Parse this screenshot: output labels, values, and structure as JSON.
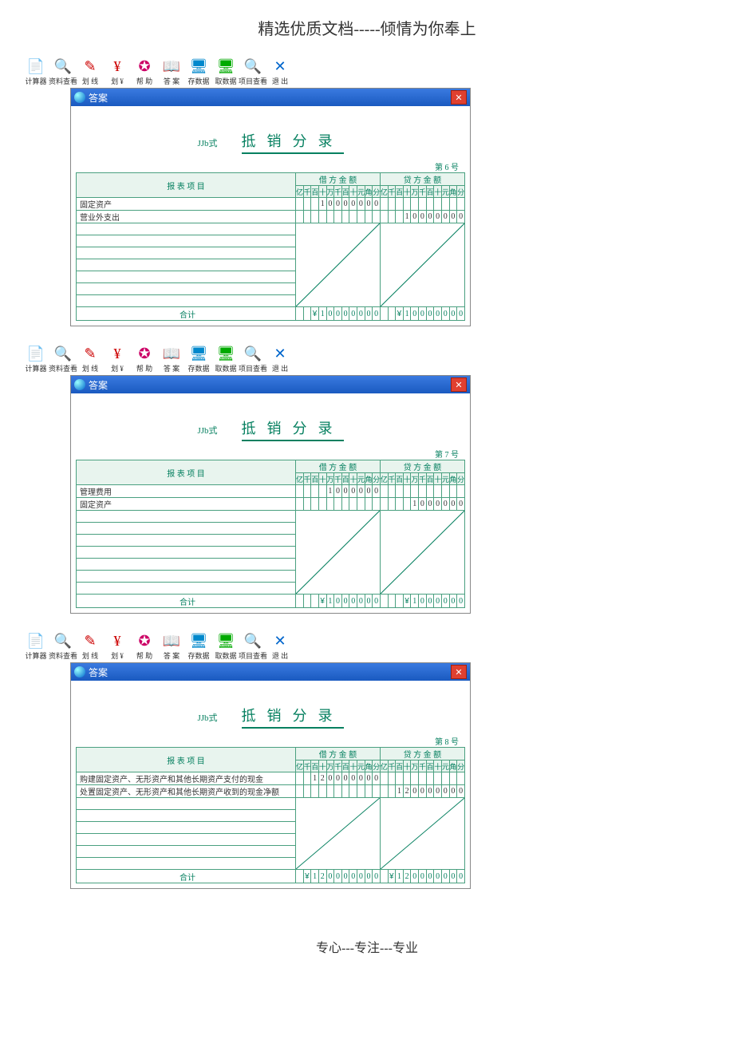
{
  "header": "精选优质文档-----倾情为你奉上",
  "footer": "专心---专注---专业",
  "toolbar": [
    {
      "name": "calc",
      "label": "计算器",
      "icon": "📄",
      "color": "#888"
    },
    {
      "name": "data-view",
      "label": "资料查看",
      "icon": "🔍",
      "color": "#06c"
    },
    {
      "name": "line1",
      "label": "划 线",
      "icon": "✎",
      "color": "#c00"
    },
    {
      "name": "line-y",
      "label": "划 ¥",
      "icon": "¥",
      "color": "#c00"
    },
    {
      "name": "help",
      "label": "帮 助",
      "icon": "✪",
      "color": "#c06"
    },
    {
      "name": "answer",
      "label": "答 案",
      "icon": "📖",
      "color": "#c80"
    },
    {
      "name": "save",
      "label": "存数据",
      "icon": "🖥",
      "color": "#08c"
    },
    {
      "name": "load",
      "label": "取数据",
      "icon": "🖥",
      "color": "#0a0"
    },
    {
      "name": "proj-view",
      "label": "项目查看",
      "icon": "🔍",
      "color": "#c80"
    },
    {
      "name": "exit",
      "label": "退 出",
      "icon": "✕",
      "color": "#06c"
    }
  ],
  "window_title": "答案",
  "form_code": "JJb式",
  "form_title": "抵销分录",
  "digit_headers": [
    "亿",
    "千",
    "百",
    "十",
    "万",
    "千",
    "百",
    "十",
    "元",
    "角",
    "分"
  ],
  "debit_header": "借 方 金 额",
  "credit_header": "贷 方 金 额",
  "item_header": "报 表 项 目",
  "total_label": "合计",
  "currency": "¥",
  "tables": [
    {
      "page_no": "第 6 号",
      "rows": [
        {
          "item": "固定资产",
          "debit": "   10000000",
          "credit": "           "
        },
        {
          "item": "营业外支出",
          "debit": "           ",
          "credit": "   10000000"
        }
      ],
      "blank_rows": 7,
      "total_debit": "  ¥10000000",
      "total_credit": "  ¥10000000"
    },
    {
      "page_no": "第 7 号",
      "rows": [
        {
          "item": "管理费用",
          "debit": "    1000000",
          "credit": "           "
        },
        {
          "item": "固定资产",
          "debit": "           ",
          "credit": "    1000000"
        }
      ],
      "blank_rows": 7,
      "total_debit": "   ¥1000000",
      "total_credit": "   ¥1000000"
    },
    {
      "page_no": "第 8 号",
      "rows": [
        {
          "item": "购建固定资产、无形资产和其他长期资产支付的现金",
          "debit": "  120000000",
          "credit": "           "
        },
        {
          "item": "处置固定资产、无形资产和其他长期资产收到的现金净额",
          "debit": "           ",
          "credit": "  120000000"
        }
      ],
      "blank_rows": 6,
      "total_debit": " ¥120000000",
      "total_credit": " ¥120000000"
    }
  ]
}
